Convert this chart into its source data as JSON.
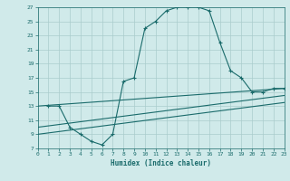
{
  "xlabel": "Humidex (Indice chaleur)",
  "bg_color": "#d0eaea",
  "grid_color": "#aacccc",
  "line_color": "#1a6b6b",
  "x_min": 0,
  "x_max": 23,
  "y_min": 7,
  "y_max": 27,
  "line1_x": [
    1,
    2,
    3,
    4,
    5,
    6,
    7,
    8,
    9,
    10,
    11,
    12,
    13,
    14,
    15,
    16,
    17,
    18,
    19,
    20,
    21,
    22,
    23
  ],
  "line1_y": [
    13,
    13,
    10,
    9,
    8,
    7.5,
    9,
    16.5,
    17,
    24,
    25,
    26.5,
    27,
    27,
    27,
    26.5,
    22,
    18,
    17,
    15,
    15,
    15.5,
    15.5
  ],
  "line2_x": [
    0,
    23
  ],
  "line2_y": [
    13,
    15.5
  ],
  "line3_x": [
    0,
    23
  ],
  "line3_y": [
    10,
    14.5
  ],
  "line4_x": [
    0,
    23
  ],
  "line4_y": [
    9,
    13.5
  ]
}
